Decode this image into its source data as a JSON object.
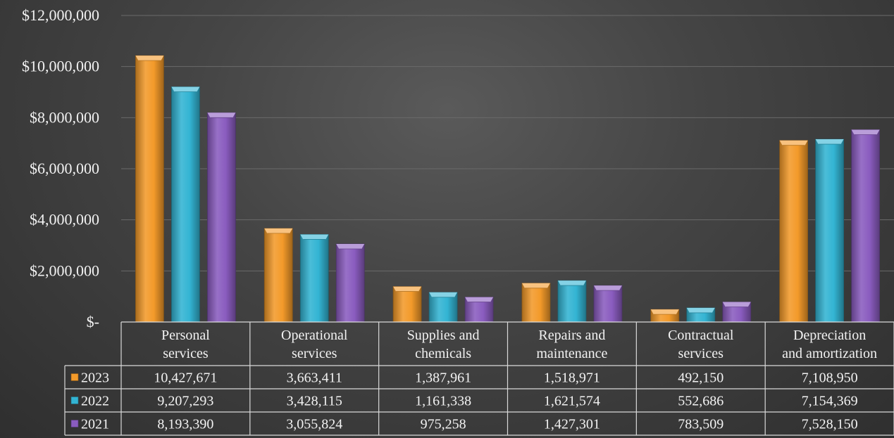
{
  "chart_data": {
    "type": "bar",
    "categories": [
      [
        "Personal",
        "services"
      ],
      [
        "Operational",
        "services"
      ],
      [
        "Supplies and",
        "chemicals"
      ],
      [
        "Repairs and",
        "maintenance"
      ],
      [
        "Contractual",
        "services"
      ],
      [
        "Depreciation",
        "and amortization"
      ]
    ],
    "series": [
      {
        "name": "2023",
        "color": "#f39a2a",
        "values": [
          10427671,
          3663411,
          1387961,
          1518971,
          492150,
          7108950
        ],
        "labels": [
          "10,427,671",
          "3,663,411",
          "1,387,961",
          "1,518,971",
          "492,150",
          "7,108,950"
        ]
      },
      {
        "name": "2022",
        "color": "#33b4d3",
        "values": [
          9207293,
          3428115,
          1161338,
          1621574,
          552686,
          7154369
        ],
        "labels": [
          "9,207,293",
          "3,428,115",
          "1,161,338",
          "1,621,574",
          "552,686",
          "7,154,369"
        ]
      },
      {
        "name": "2021",
        "color": "#8a5cbf",
        "values": [
          8193390,
          3055824,
          975258,
          1427301,
          783509,
          7528150
        ],
        "labels": [
          "8,193,390",
          "3,055,824",
          "975,258",
          "1,427,301",
          "783,509",
          "7,528,150"
        ]
      }
    ],
    "ylim": [
      0,
      12000000
    ],
    "yticks": [
      {
        "value": 0,
        "label": "$-"
      },
      {
        "value": 2000000,
        "label": "$2,000,000"
      },
      {
        "value": 4000000,
        "label": "$4,000,000"
      },
      {
        "value": 6000000,
        "label": "$6,000,000"
      },
      {
        "value": 8000000,
        "label": "$8,000,000"
      },
      {
        "value": 10000000,
        "label": "$10,000,000"
      },
      {
        "value": 12000000,
        "label": "$12,000,000"
      }
    ],
    "grid": true,
    "legend": "data-table"
  }
}
